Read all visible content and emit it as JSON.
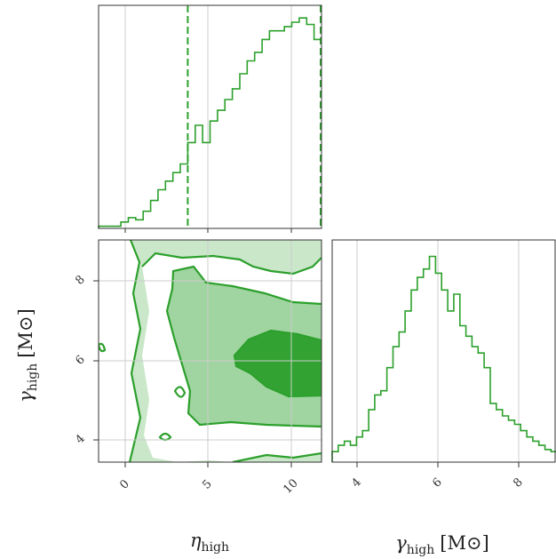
{
  "chart_data": {
    "type": "corner",
    "color": "#2ca02c",
    "parameters": [
      {
        "name": "eta_high",
        "label": "η",
        "label_sub": "high",
        "unit": "",
        "range": [
          -1.6,
          11.9
        ],
        "ticks": [
          0,
          5,
          10
        ]
      },
      {
        "name": "gamma_high",
        "label": "γ",
        "label_sub": "high",
        "unit": "[M⊙]",
        "range": [
          3.4,
          8.9
        ],
        "ticks": [
          4,
          6,
          8
        ]
      }
    ],
    "eta_high_hist": {
      "bin_edges": [
        -1.6,
        -1.15,
        -0.7,
        -0.25,
        0.2,
        0.65,
        1.1,
        1.55,
        2.0,
        2.45,
        2.9,
        3.35,
        3.8,
        4.25,
        4.7,
        5.15,
        5.6,
        6.05,
        6.5,
        6.95,
        7.4,
        7.85,
        8.3,
        8.75,
        9.2,
        9.65,
        10.1,
        10.55,
        11.0,
        11.45,
        11.9
      ],
      "counts": [
        1,
        1,
        1,
        3,
        5,
        4,
        8,
        13,
        18,
        22,
        26,
        30,
        40,
        48,
        40,
        50,
        55,
        60,
        65,
        72,
        78,
        82,
        88,
        92,
        92,
        94,
        96,
        98,
        95,
        88
      ],
      "quantiles": [
        3.8,
        11.9
      ]
    },
    "gamma_high_hist": {
      "bin_edges": [
        3.4,
        3.55,
        3.7,
        3.85,
        4.0,
        4.15,
        4.3,
        4.45,
        4.6,
        4.75,
        4.9,
        5.05,
        5.2,
        5.35,
        5.5,
        5.65,
        5.8,
        5.95,
        6.1,
        6.25,
        6.4,
        6.55,
        6.7,
        6.85,
        7.0,
        7.15,
        7.3,
        7.45,
        7.6,
        7.75,
        7.9,
        8.05,
        8.2,
        8.35,
        8.5,
        8.65,
        8.8,
        8.95
      ],
      "counts": [
        5,
        8,
        10,
        8,
        12,
        15,
        25,
        32,
        34,
        45,
        55,
        62,
        72,
        82,
        88,
        92,
        98,
        90,
        82,
        72,
        80,
        65,
        60,
        55,
        52,
        45,
        28,
        25,
        22,
        20,
        18,
        15,
        12,
        10,
        8,
        6,
        5
      ]
    },
    "contour_levels": [
      0.39,
      0.86,
      0.99
    ]
  }
}
